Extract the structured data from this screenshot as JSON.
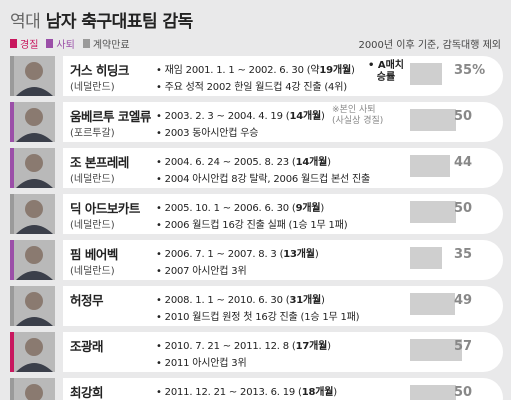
{
  "header": {
    "title_prefix": "역대",
    "title_main": "남자 축구대표팀 감독",
    "note": "2000년 이후 기준, 감독대행 제외"
  },
  "legend": [
    {
      "label": "경질",
      "color": "#c8175e"
    },
    {
      "label": "사퇴",
      "color": "#9b4fa8"
    },
    {
      "label": "계약만료",
      "color": "#9a9a9a"
    }
  ],
  "chart_data": {
    "type": "bar",
    "categories": [
      "거스 히딩크",
      "움베르투 코엘류",
      "조 본프레레",
      "딕 아드보카트",
      "핌 베어벡",
      "허정무",
      "조광래",
      "최강희"
    ],
    "values": [
      35,
      50,
      44,
      50,
      35,
      49,
      57,
      50
    ],
    "value_labels": [
      "35%",
      "50",
      "44",
      "50",
      "35",
      "49",
      "57",
      "50"
    ],
    "xlim": [
      0,
      100
    ],
    "grid": false
  },
  "coaches": [
    {
      "name": "거스 히딩크",
      "nation": "(네덜란드)",
      "status_color": "#9a9a9a",
      "line1": {
        "prefix": "• 재임 2001. 1. 1 ~ 2002. 6. 30 (약",
        "strong": "19개월",
        "suffix": ")"
      },
      "line2": {
        "prefix": "• 주요 성적 2002 한일 월드컵 4강 진출 (4위)",
        "strong": "",
        "suffix": ""
      },
      "badge": "• A매치\n승률",
      "side": ""
    },
    {
      "name": "움베르투 코엘류",
      "nation": "(포르투갈)",
      "status_color": "#9b4fa8",
      "line1": {
        "prefix": "• 2003. 2. 3 ~ 2004. 4. 19 (",
        "strong": "14개월",
        "suffix": ")"
      },
      "line2": {
        "prefix": "• 2003 동아시안컵 우승",
        "strong": "",
        "suffix": ""
      },
      "badge": "",
      "side": "※본인 사퇴\n(사실상 경질)"
    },
    {
      "name": "조 본프레레",
      "nation": "(네덜란드)",
      "status_color": "#9b4fa8",
      "line1": {
        "prefix": "• 2004. 6. 24 ~ 2005. 8. 23 (",
        "strong": "14개월",
        "suffix": ")"
      },
      "line2": {
        "prefix": "• 2004 아시안컵 8강 탈락, 2006 월드컵 본선 진출",
        "strong": "",
        "suffix": ""
      },
      "badge": "",
      "side": ""
    },
    {
      "name": "딕 아드보카트",
      "nation": "(네덜란드)",
      "status_color": "#9a9a9a",
      "line1": {
        "prefix": "• 2005. 10. 1 ~ 2006. 6. 30 (",
        "strong": "9개월",
        "suffix": ")"
      },
      "line2": {
        "prefix": "• 2006 월드컵 16강 진출 실패 (1승 1무 1패)",
        "strong": "",
        "suffix": ""
      },
      "badge": "",
      "side": ""
    },
    {
      "name": "핌 베어벡",
      "nation": "(네덜란드)",
      "status_color": "#9b4fa8",
      "line1": {
        "prefix": "• 2006. 7. 1 ~ 2007. 8. 3 (",
        "strong": "13개월",
        "suffix": ")"
      },
      "line2": {
        "prefix": "• 2007 아시안컵 3위",
        "strong": "",
        "suffix": ""
      },
      "badge": "",
      "side": ""
    },
    {
      "name": "허정무",
      "nation": "",
      "status_color": "#9a9a9a",
      "line1": {
        "prefix": "• 2008. 1. 1 ~ 2010. 6. 30 (",
        "strong": "31개월",
        "suffix": ")"
      },
      "line2": {
        "prefix": "• 2010 월드컵 원정 첫 16강 진출 (1승 1무 1패)",
        "strong": "",
        "suffix": ""
      },
      "badge": "",
      "side": ""
    },
    {
      "name": "조광래",
      "nation": "",
      "status_color": "#c8175e",
      "line1": {
        "prefix": "• 2010. 7. 21 ~ 2011. 12. 8 (",
        "strong": "17개월",
        "suffix": ")"
      },
      "line2": {
        "prefix": "• 2011 아시안컵 3위",
        "strong": "",
        "suffix": ""
      },
      "badge": "",
      "side": ""
    },
    {
      "name": "최강희",
      "nation": "",
      "status_color": "#9a9a9a",
      "line1": {
        "prefix": "• 2011. 12. 21 ~ 2013. 6. 19 (",
        "strong": "18개월",
        "suffix": ")"
      },
      "line2": {
        "prefix": "",
        "strong": "",
        "suffix": ""
      },
      "badge": "",
      "side": ""
    }
  ]
}
